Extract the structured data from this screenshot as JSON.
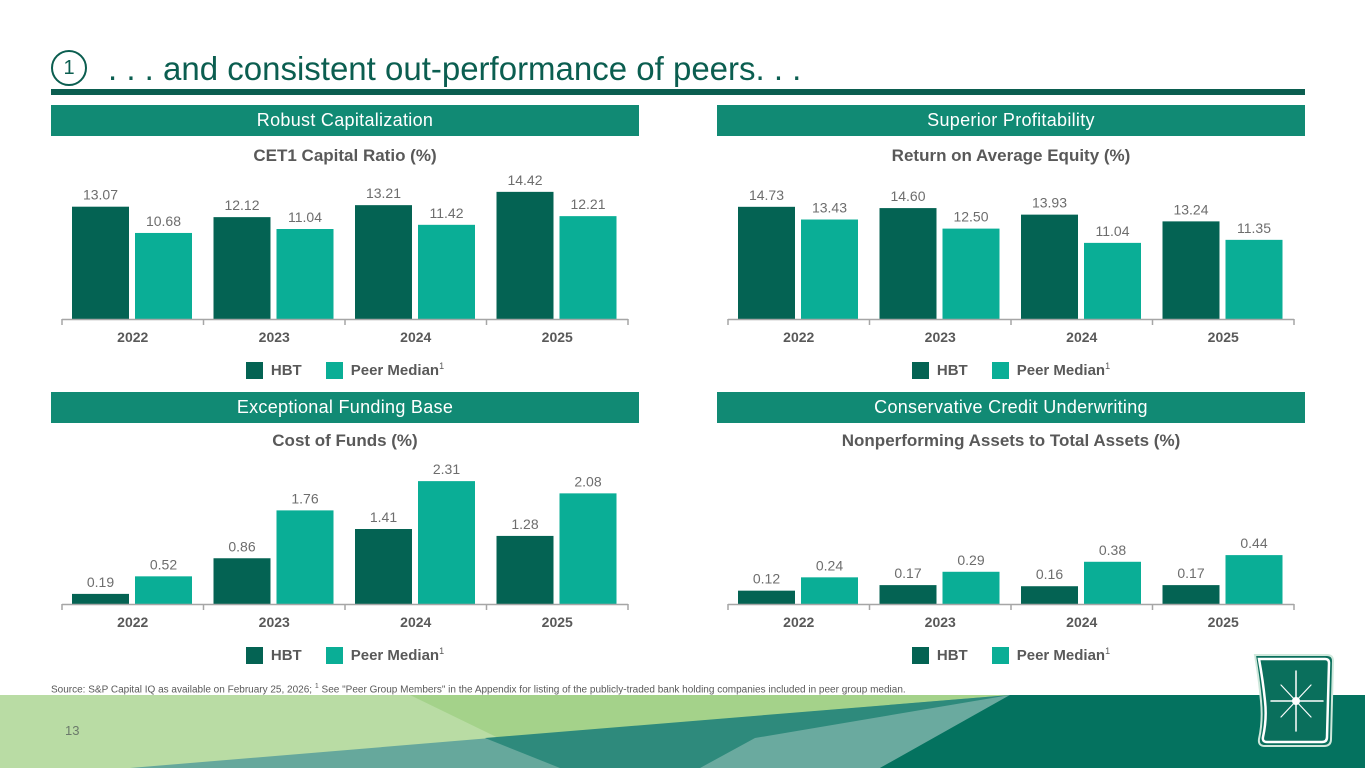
{
  "header": {
    "section_number": "1",
    "title": ". . . and consistent out-performance of peers. . ."
  },
  "colors": {
    "brand_dark": "#0b5e50",
    "header_bg": "#118a74",
    "hbt": "#046353",
    "peer": "#0aae96",
    "text_gray": "#595959",
    "axis": "#a6a6a6"
  },
  "panels": [
    {
      "header": "Robust Capitalization"
    },
    {
      "header": "Superior Profitability"
    },
    {
      "header": "Exceptional Funding Base"
    },
    {
      "header": "Conservative Credit Underwriting"
    }
  ],
  "legend": {
    "hbt_label": "HBT",
    "peer_label": "Peer Median",
    "peer_sup": "1"
  },
  "chart_data": [
    {
      "type": "bar",
      "title": "CET1 Capital Ratio (%)",
      "categories": [
        "2022",
        "2023",
        "2024",
        "2025"
      ],
      "series": [
        {
          "name": "HBT",
          "values": [
            13.07,
            12.12,
            13.21,
            14.42
          ],
          "labels": [
            "13.07",
            "12.12",
            "13.21",
            "14.42"
          ]
        },
        {
          "name": "Peer Median",
          "values": [
            10.68,
            11.04,
            11.42,
            12.21
          ],
          "labels": [
            "10.68",
            "11.04",
            "11.42",
            "12.21"
          ]
        }
      ],
      "xlabel": "",
      "ylabel": "",
      "ylim": [
        2.85,
        16.5
      ],
      "grid": false,
      "legend": "bottom"
    },
    {
      "type": "bar",
      "title": "Return on Average Equity (%)",
      "categories": [
        "2022",
        "2023",
        "2024",
        "2025"
      ],
      "series": [
        {
          "name": "HBT",
          "values": [
            14.73,
            14.6,
            13.93,
            13.24
          ],
          "labels": [
            "14.73",
            "14.60",
            "13.93",
            "13.24"
          ]
        },
        {
          "name": "Peer Median",
          "values": [
            13.43,
            12.5,
            11.04,
            11.35
          ],
          "labels": [
            "13.43",
            "12.50",
            "11.04",
            "11.35"
          ]
        }
      ],
      "xlabel": "",
      "ylabel": "",
      "ylim": [
        3.25,
        18.6
      ],
      "grid": false,
      "legend": "bottom"
    },
    {
      "type": "bar",
      "title": "Cost of Funds (%)",
      "categories": [
        "2022",
        "2023",
        "2024",
        "2025"
      ],
      "series": [
        {
          "name": "HBT",
          "values": [
            0.19,
            0.86,
            1.41,
            1.28
          ],
          "labels": [
            "0.19",
            "0.86",
            "1.41",
            "1.28"
          ]
        },
        {
          "name": "Peer Median",
          "values": [
            0.52,
            1.76,
            2.31,
            2.08
          ],
          "labels": [
            "0.52",
            "1.76",
            "2.31",
            "2.08"
          ]
        }
      ],
      "xlabel": "",
      "ylabel": "",
      "ylim": [
        0,
        2.82
      ],
      "grid": false,
      "legend": "bottom"
    },
    {
      "type": "bar",
      "title": "Nonperforming Assets to Total Assets (%)",
      "categories": [
        "2022",
        "2023",
        "2024",
        "2025"
      ],
      "series": [
        {
          "name": "HBT",
          "values": [
            0.12,
            0.17,
            0.16,
            0.17
          ],
          "labels": [
            "0.12",
            "0.17",
            "0.16",
            "0.17"
          ]
        },
        {
          "name": "Peer Median",
          "values": [
            0.24,
            0.29,
            0.38,
            0.44
          ],
          "labels": [
            "0.24",
            "0.29",
            "0.38",
            "0.44"
          ]
        }
      ],
      "xlabel": "",
      "ylabel": "",
      "ylim": [
        0,
        1.35
      ],
      "grid": false,
      "legend": "bottom"
    }
  ],
  "footer": {
    "source_prefix": "Source: S&P Capital IQ as available on February 25, 2026; ",
    "source_sup": "1",
    "source_suffix": " See \"Peer Group Members\" in the Appendix for listing of the publicly-traded bank holding companies included in peer group median.",
    "page_number": "13"
  },
  "logo": {
    "icon": "star-shield-logo"
  }
}
